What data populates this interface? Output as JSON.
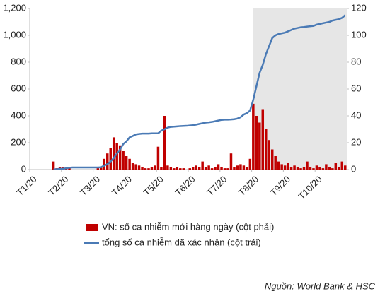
{
  "chart_data": {
    "type": "bar",
    "categories": [
      "T1/20",
      null,
      null,
      null,
      null,
      null,
      null,
      null,
      null,
      null,
      "T2/20",
      null,
      null,
      null,
      null,
      null,
      null,
      null,
      null,
      null,
      "T3/20",
      null,
      null,
      null,
      null,
      null,
      null,
      null,
      null,
      null,
      "T4/20",
      null,
      null,
      null,
      null,
      null,
      null,
      null,
      null,
      null,
      "T5/20",
      null,
      null,
      null,
      null,
      null,
      null,
      null,
      null,
      null,
      "T6/20",
      null,
      null,
      null,
      null,
      null,
      null,
      null,
      null,
      null,
      "T7/20",
      null,
      null,
      null,
      null,
      null,
      null,
      null,
      null,
      null,
      "T8/20",
      null,
      null,
      null,
      null,
      null,
      null,
      null,
      null,
      null,
      "T9/20",
      null,
      null,
      null,
      null,
      null,
      null,
      null,
      null,
      null,
      "T10/20",
      null,
      null,
      null,
      null,
      null,
      null,
      null,
      null,
      null
    ],
    "series": [
      {
        "name": "VN: số ca nhiễm mới hàng ngày (cột phải)",
        "type": "bar",
        "axis": "y2",
        "color": "#c00000",
        "values": [
          0,
          0,
          0,
          0,
          0,
          0,
          0,
          6,
          1,
          2,
          2,
          1,
          1,
          0,
          0,
          0,
          0,
          0,
          0,
          0,
          0,
          1,
          2,
          8,
          12,
          16,
          24,
          20,
          18,
          14,
          10,
          8,
          5,
          4,
          3,
          2,
          1,
          1,
          2,
          3,
          17,
          2,
          40,
          3,
          2,
          1,
          2,
          1,
          1,
          0,
          1,
          2,
          3,
          2,
          6,
          2,
          3,
          1,
          2,
          4,
          2,
          1,
          1,
          12,
          2,
          3,
          4,
          3,
          2,
          8,
          49,
          40,
          35,
          45,
          30,
          22,
          15,
          10,
          6,
          4,
          3,
          5,
          2,
          3,
          2,
          1,
          2,
          6,
          2,
          1,
          3,
          2,
          1,
          4,
          2,
          1,
          5,
          2,
          6,
          3
        ]
      },
      {
        "name": "tổng số ca nhiễm đã xác nhận (cột trái)",
        "type": "line",
        "color": "#4a7ab5",
        "values": [
          null,
          null,
          null,
          null,
          null,
          null,
          null,
          2,
          2,
          5,
          6,
          10,
          14,
          16,
          16,
          16,
          16,
          16,
          16,
          16,
          16,
          16,
          17,
          30,
          40,
          60,
          85,
          120,
          150,
          190,
          210,
          240,
          250,
          262,
          265,
          268,
          268,
          268,
          270,
          270,
          270,
          290,
          300,
          312,
          318,
          320,
          322,
          324,
          325,
          326,
          328,
          330,
          335,
          340,
          345,
          350,
          352,
          355,
          360,
          365,
          370,
          372,
          372,
          373,
          375,
          380,
          390,
          410,
          420,
          440,
          520,
          620,
          720,
          780,
          860,
          920,
          980,
          1000,
          1010,
          1015,
          1020,
          1030,
          1040,
          1050,
          1055,
          1060,
          1062,
          1065,
          1068,
          1070,
          1080,
          1085,
          1090,
          1095,
          1100,
          1110,
          1115,
          1120,
          1130,
          1150
        ]
      }
    ],
    "ylim": [
      0,
      1200
    ],
    "yticks": [
      0,
      200,
      400,
      600,
      800,
      {
        "value": 1000,
        "label": "1,000"
      },
      {
        "value": 1200,
        "label": "1,200"
      }
    ],
    "y2lim": [
      0,
      120
    ],
    "y2ticks": [
      0,
      20,
      40,
      60,
      80,
      100,
      120
    ],
    "note": "Nguồn: World Bank & HSC"
  }
}
